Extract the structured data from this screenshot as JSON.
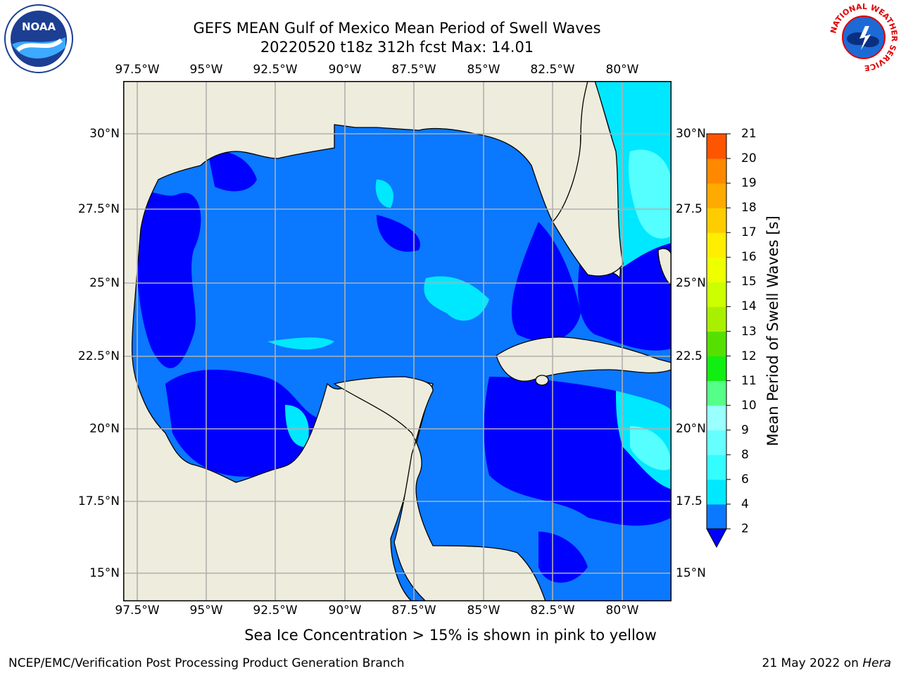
{
  "title_line1": "GEFS MEAN Gulf of Mexico Mean Period of Swell Waves",
  "title_line2": "20220520 t18z 312h fcst   Max: 14.01",
  "lon_labels": [
    "97.5°W",
    "95°W",
    "92.5°W",
    "90°W",
    "87.5°W",
    "85°W",
    "82.5°W",
    "80°W"
  ],
  "lat_labels": [
    "30°N",
    "27.5°N",
    "25°N",
    "22.5°N",
    "20°N",
    "17.5°N",
    "15°N"
  ],
  "lat_labels_right": [
    "30°N",
    "27.5",
    "25°N",
    "22.5",
    "20°N",
    "17.5",
    "15°N"
  ],
  "colorbar": {
    "title": "Mean Period of Swell Waves [s]",
    "ticks": [
      "2",
      "4",
      "6",
      "8",
      "9",
      "10",
      "11",
      "12",
      "13",
      "14",
      "15",
      "16",
      "17",
      "18",
      "19",
      "20",
      "21"
    ],
    "colors": [
      "#0a78ff",
      "#00e8ff",
      "#33fdff",
      "#66ffff",
      "#99ffff",
      "#55ff88",
      "#11ee11",
      "#55e000",
      "#a8f000",
      "#ccff00",
      "#eeff00",
      "#ffee00",
      "#ffcc00",
      "#ffaa00",
      "#ff8800",
      "#ff5500",
      "#ff2200",
      "#ff0000"
    ],
    "under_color": "#0000ff"
  },
  "map_colors": {
    "land": "#eeecdc",
    "water_base": "#0a78ff",
    "water_low": "#0000ff",
    "water_mid": "#00e8ff",
    "water_light": "#55ffff",
    "grid": "#b0b0b0",
    "coast": "#000000"
  },
  "subtitle": "Sea Ice Concentration > 15% is shown in pink to yellow",
  "footer_left": "NCEP/EMC/Verification Post Processing Product Generation Branch",
  "footer_right_date": "21 May 2022 on ",
  "footer_right_host": "Hera",
  "logos": {
    "noaa_text": "NOAA",
    "nws_ring_text": "NATIONAL WEATHER SERVICE"
  }
}
